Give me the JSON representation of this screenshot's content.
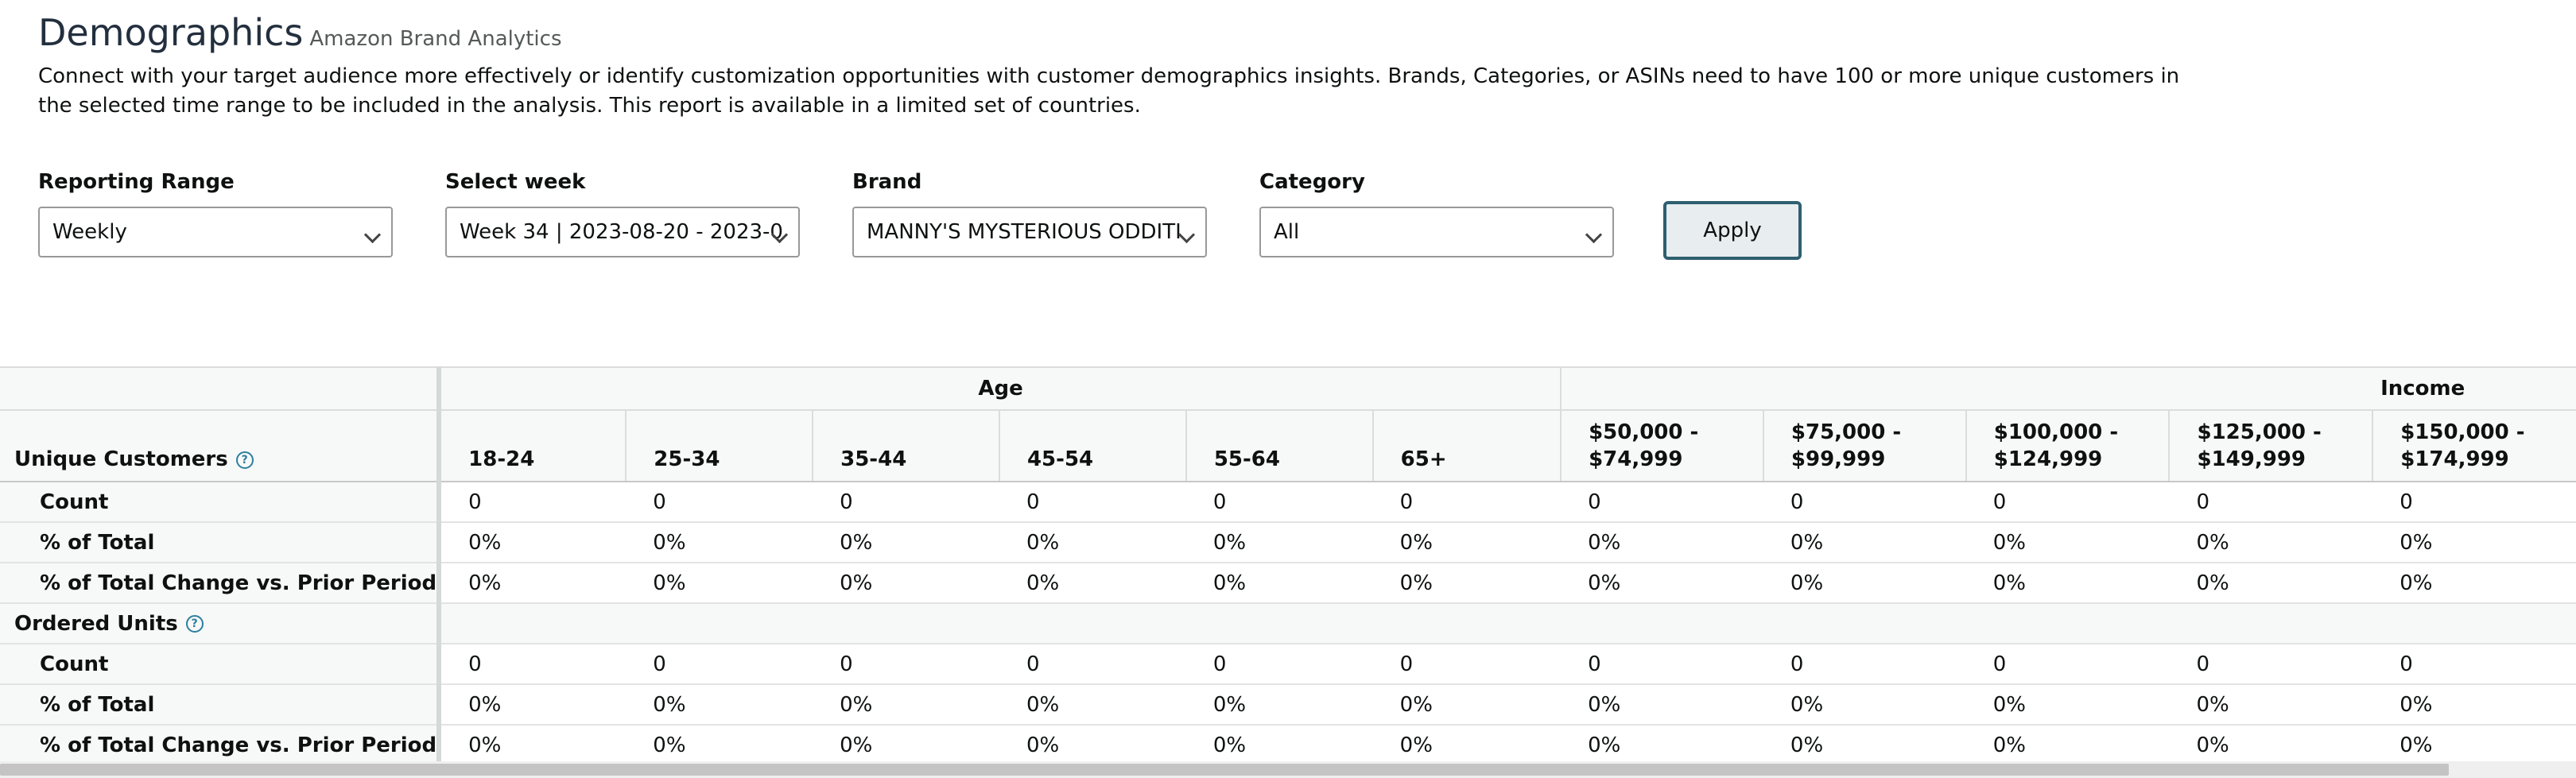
{
  "header": {
    "title": "Demographics",
    "subtitle": "Amazon Brand Analytics",
    "description": "Connect with your target audience more effectively or identify customization opportunities with customer demographics insights. Brands, Categories, or ASINs need to have 100 or more unique customers in the selected time range to be included in the analysis. This report is available in a limited set of countries."
  },
  "filters": {
    "reporting_range": {
      "label": "Reporting Range",
      "value": "Weekly"
    },
    "select_week": {
      "label": "Select week",
      "value": "Week 34 | 2023-08-20 - 2023-0"
    },
    "brand": {
      "label": "Brand",
      "value": "MANNY'S MYSTERIOUS ODDITI"
    },
    "category": {
      "label": "Category",
      "value": "All"
    },
    "apply_label": "Apply"
  },
  "table": {
    "groups": {
      "age": "Age",
      "income": "Income"
    },
    "columns": [
      "18-24",
      "25-34",
      "35-44",
      "45-54",
      "55-64",
      "65+",
      "$50,000 - $74,999",
      "$75,000 - $99,999",
      "$100,000 - $124,999",
      "$125,000 - $149,999",
      "$150,000 - $174,999"
    ],
    "sections": [
      {
        "title": "Unique Customers",
        "rows": [
          {
            "label": "Count",
            "values": [
              "0",
              "0",
              "0",
              "0",
              "0",
              "0",
              "0",
              "0",
              "0",
              "0",
              "0"
            ]
          },
          {
            "label": "% of Total",
            "values": [
              "0%",
              "0%",
              "0%",
              "0%",
              "0%",
              "0%",
              "0%",
              "0%",
              "0%",
              "0%",
              "0%"
            ]
          },
          {
            "label": "% of Total Change vs. Prior Period",
            "values": [
              "0%",
              "0%",
              "0%",
              "0%",
              "0%",
              "0%",
              "0%",
              "0%",
              "0%",
              "0%",
              "0%"
            ]
          }
        ]
      },
      {
        "title": "Ordered Units",
        "rows": [
          {
            "label": "Count",
            "values": [
              "0",
              "0",
              "0",
              "0",
              "0",
              "0",
              "0",
              "0",
              "0",
              "0",
              "0"
            ]
          },
          {
            "label": "% of Total",
            "values": [
              "0%",
              "0%",
              "0%",
              "0%",
              "0%",
              "0%",
              "0%",
              "0%",
              "0%",
              "0%",
              "0%"
            ]
          },
          {
            "label": "% of Total Change vs. Prior Period",
            "values": [
              "0%",
              "0%",
              "0%",
              "0%",
              "0%",
              "0%",
              "0%",
              "0%",
              "0%",
              "0%",
              "0%"
            ]
          }
        ]
      }
    ]
  }
}
